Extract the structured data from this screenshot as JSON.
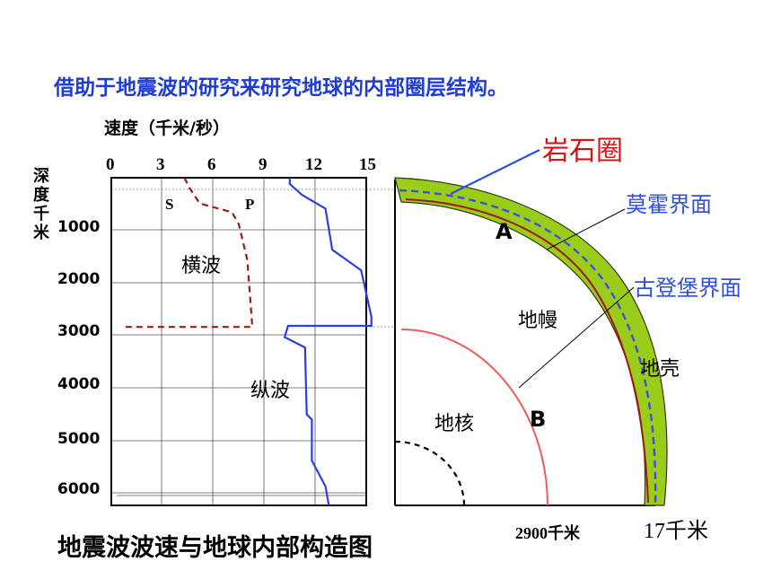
{
  "headline": "借助于地震波的研究来研究地球的内部圈层结构。",
  "chart": {
    "unit_label": "速度（千米/秒）",
    "y_axis_label": "深度千米",
    "x_ticks": [
      "0",
      "3",
      "6",
      "9",
      "12",
      "15"
    ],
    "y_ticks": [
      "1000",
      "2000",
      "3000",
      "4000",
      "5000",
      "6000"
    ],
    "s_label": "S",
    "p_label": "P",
    "s_wave_label": "横波",
    "p_wave_label": "纵波",
    "s_color": "#a01818",
    "p_color": "#2b3fe0"
  },
  "chart_data": {
    "type": "line",
    "xlabel": "速度（千米/秒）",
    "ylabel": "深度千米",
    "xlim": [
      0,
      15
    ],
    "ylim": [
      0,
      6370
    ],
    "series": [
      {
        "name": "纵波",
        "points": [
          [
            10.5,
            0
          ],
          [
            10.5,
            120
          ],
          [
            11.2,
            330
          ],
          [
            12.6,
            600
          ],
          [
            13.0,
            1400
          ],
          [
            14.7,
            1800
          ],
          [
            15.3,
            2700
          ],
          [
            15.3,
            2880
          ],
          [
            10.4,
            2880
          ],
          [
            10.2,
            3100
          ],
          [
            11.4,
            3300
          ],
          [
            11.5,
            4600
          ],
          [
            11.8,
            4700
          ],
          [
            11.8,
            5500
          ],
          [
            12.6,
            6000
          ],
          [
            12.8,
            6370
          ]
        ]
      },
      {
        "name": "横波",
        "points": [
          [
            4.3,
            0
          ],
          [
            4.6,
            200
          ],
          [
            5.2,
            500
          ],
          [
            7.1,
            670
          ],
          [
            7.5,
            900
          ],
          [
            8.0,
            1600
          ],
          [
            8.3,
            2900
          ],
          [
            0.8,
            2900
          ]
        ]
      }
    ]
  },
  "structure": {
    "lithosphere": "岩石圈",
    "moho": "莫霍界面",
    "gutenberg": "古登堡界面",
    "mantle": "地幔",
    "crust": "地壳",
    "core": "地核",
    "label_a": "A",
    "label_b": "B",
    "depth_2900": "2900千米",
    "depth_17": "17千米",
    "crust_color": "#9bcc1a",
    "boundary_color": "#f05a5a"
  },
  "title": "地震波波速与地球内部构造图"
}
